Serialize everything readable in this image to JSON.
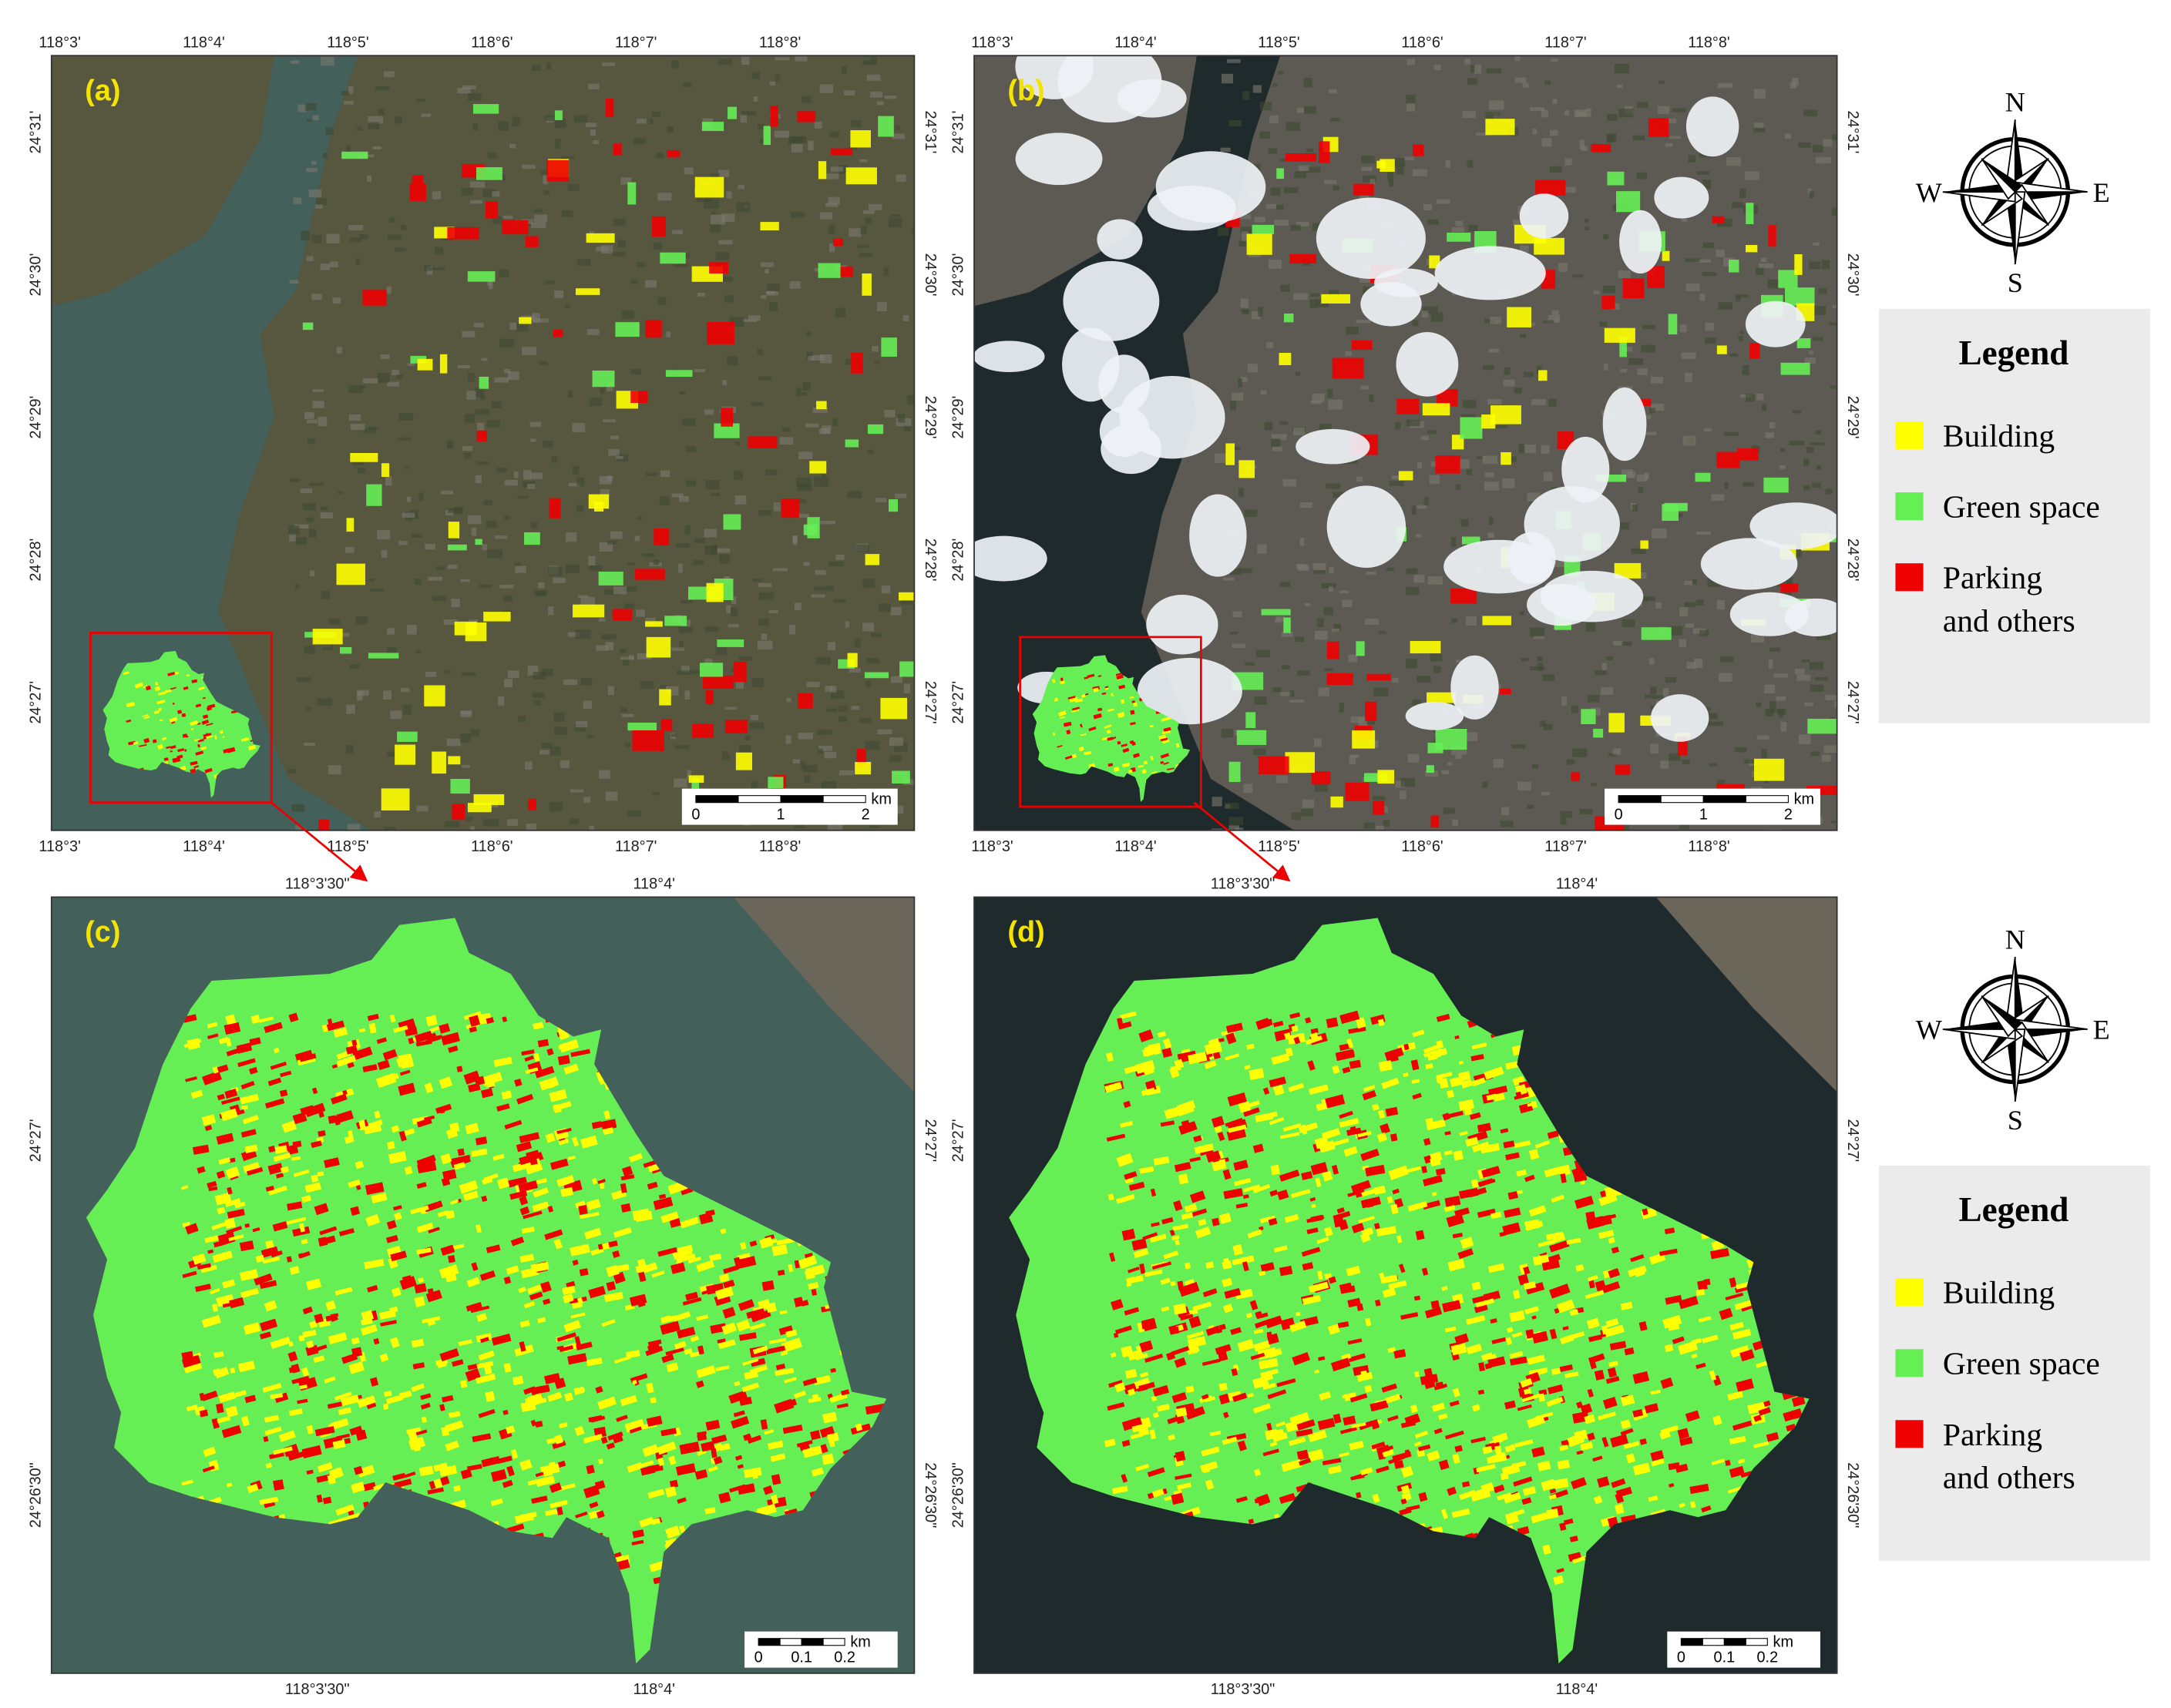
{
  "panels": [
    {
      "label": "(a)",
      "top_ticks": [
        "118°3'",
        "118°4'",
        "118°5'",
        "118°6'",
        "118°7'",
        "118°8'"
      ],
      "bottom_ticks": [
        "118°3'",
        "118°4'",
        "118°5'",
        "118°6'",
        "118°7'",
        "118°8'"
      ],
      "left_ticks": [
        "24°31'",
        "24°30'",
        "24°29'",
        "24°28'",
        "24°27'"
      ],
      "right_ticks": [
        "24°31'",
        "24°30'",
        "24°29'",
        "24°28'",
        "24°27'"
      ],
      "scale_bar": {
        "unit": "km",
        "ticks": [
          "0",
          "1",
          "2"
        ]
      }
    },
    {
      "label": "(b)",
      "top_ticks": [
        "118°3'",
        "118°4'",
        "118°5'",
        "118°6'",
        "118°7'",
        "118°8'"
      ],
      "bottom_ticks": [
        "118°3'",
        "118°4'",
        "118°5'",
        "118°6'",
        "118°7'",
        "118°8'"
      ],
      "left_ticks": [
        "24°31'",
        "24°30'",
        "24°29'",
        "24°28'",
        "24°27'"
      ],
      "right_ticks": [
        "24°31'",
        "24°30'",
        "24°29'",
        "24°28'",
        "24°27'"
      ],
      "scale_bar": {
        "unit": "km",
        "ticks": [
          "0",
          "1",
          "2"
        ]
      }
    },
    {
      "label": "(c)",
      "top_ticks": [
        "118°3'30\"",
        "118°4'"
      ],
      "bottom_ticks": [
        "118°3'30\"",
        "118°4'"
      ],
      "left_ticks": [
        "24°27'",
        "24°26'30\""
      ],
      "right_ticks": [
        "24°27'",
        "24°26'30\""
      ],
      "scale_bar": {
        "unit": "km",
        "ticks": [
          "0",
          "0.1",
          "0.2"
        ]
      }
    },
    {
      "label": "(d)",
      "top_ticks": [
        "118°3'30\"",
        "118°4'"
      ],
      "bottom_ticks": [
        "118°3'30\"",
        "118°4'"
      ],
      "left_ticks": [
        "24°27'",
        "24°26'30\""
      ],
      "right_ticks": [
        "24°27'",
        "24°26'30\""
      ],
      "scale_bar": {
        "unit": "km",
        "ticks": [
          "0",
          "0.1",
          "0.2"
        ]
      }
    }
  ],
  "compasses": [
    {
      "north": "N",
      "east": "E",
      "south": "S",
      "west": "W"
    },
    {
      "north": "N",
      "east": "E",
      "south": "S",
      "west": "W"
    }
  ],
  "legends": [
    {
      "title": "Legend",
      "items": [
        {
          "label": [
            "Building"
          ],
          "color": "#ffff00"
        },
        {
          "label": [
            "Green space"
          ],
          "color": "#66ee55"
        },
        {
          "label": [
            "Parking",
            "and others"
          ],
          "color": "#ee0000"
        }
      ]
    },
    {
      "title": "Legend",
      "items": [
        {
          "label": [
            "Building"
          ],
          "color": "#ffff00"
        },
        {
          "label": [
            "Green space"
          ],
          "color": "#66ee55"
        },
        {
          "label": [
            "Parking",
            "and others"
          ],
          "color": "#ee0000"
        }
      ]
    }
  ]
}
